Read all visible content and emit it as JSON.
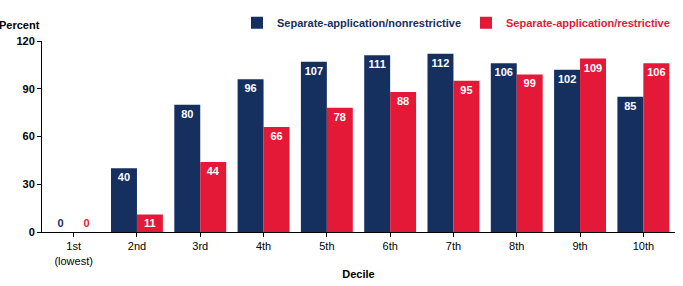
{
  "chart_data": {
    "type": "bar",
    "x_label": "Decile",
    "y_label": "Percent",
    "categories": [
      "1st\n(lowest)",
      "2nd",
      "3rd",
      "4th",
      "5th",
      "6th",
      "7th",
      "8th",
      "9th",
      "10th"
    ],
    "series": [
      {
        "name": "Separate-application/nonrestrictive",
        "color": "#15305f",
        "values": [
          0,
          40,
          80,
          96,
          107,
          111,
          112,
          106,
          102,
          85
        ]
      },
      {
        "name": "Separate-application/restrictive",
        "color": "#e31937",
        "values": [
          0,
          11,
          44,
          66,
          78,
          88,
          95,
          99,
          109,
          106
        ]
      }
    ],
    "ylim": [
      0,
      120
    ],
    "yticks": [
      0,
      30,
      60,
      90,
      120
    ],
    "grid": false,
    "legend": "top-right",
    "data_labels": true
  }
}
